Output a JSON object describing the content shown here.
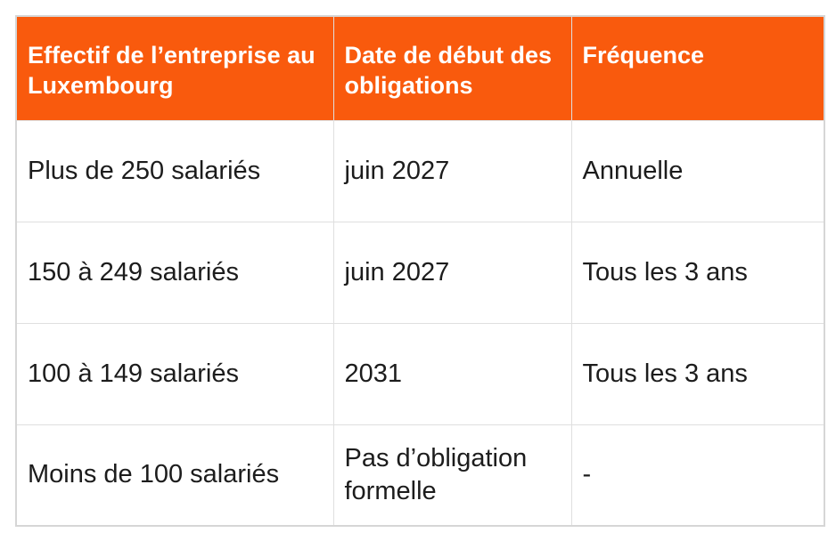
{
  "colors": {
    "page_background": "#FFFFFF",
    "header_background": "#F95A0D",
    "header_text": "#FFFFFF",
    "body_text": "#1C1C1C",
    "grid_border": "#DFDFDF",
    "outer_border": "#D6D6D6"
  },
  "table": {
    "headers": [
      [
        "Effectif de l’entreprise au",
        "Luxembourg"
      ],
      [
        "Date de début des",
        "obligations"
      ],
      "Fréquence"
    ],
    "rows": [
      [
        "Plus de 250 salariés",
        "juin 2027",
        "Annuelle"
      ],
      [
        "150 à 249 salariés",
        "juin 2027",
        "Tous les 3 ans"
      ],
      [
        "100 à 149 salariés",
        "2031",
        "Tous les 3 ans"
      ],
      [
        "Moins de 100 salariés",
        [
          "Pas d’obligation",
          "formelle"
        ],
        "-"
      ]
    ]
  },
  "chart_data": {
    "type": "table",
    "title": "",
    "columns": [
      "Effectif de l’entreprise au Luxembourg",
      "Date de début des obligations",
      "Fréquence"
    ],
    "rows": [
      [
        "Plus de 250 salariés",
        "juin 2027",
        "Annuelle"
      ],
      [
        "150 à 249 salariés",
        "juin 2027",
        "Tous les 3 ans"
      ],
      [
        "100 à 149 salariés",
        "2031",
        "Tous les 3 ans"
      ],
      [
        "Moins de 100 salariés",
        "Pas d’obligation formelle",
        "-"
      ]
    ],
    "layout": {
      "header_background": "#F95A0D",
      "header_text_color": "#FFFFFF",
      "grid": true,
      "header_align": "left-top",
      "body_align": "left-middle"
    }
  }
}
